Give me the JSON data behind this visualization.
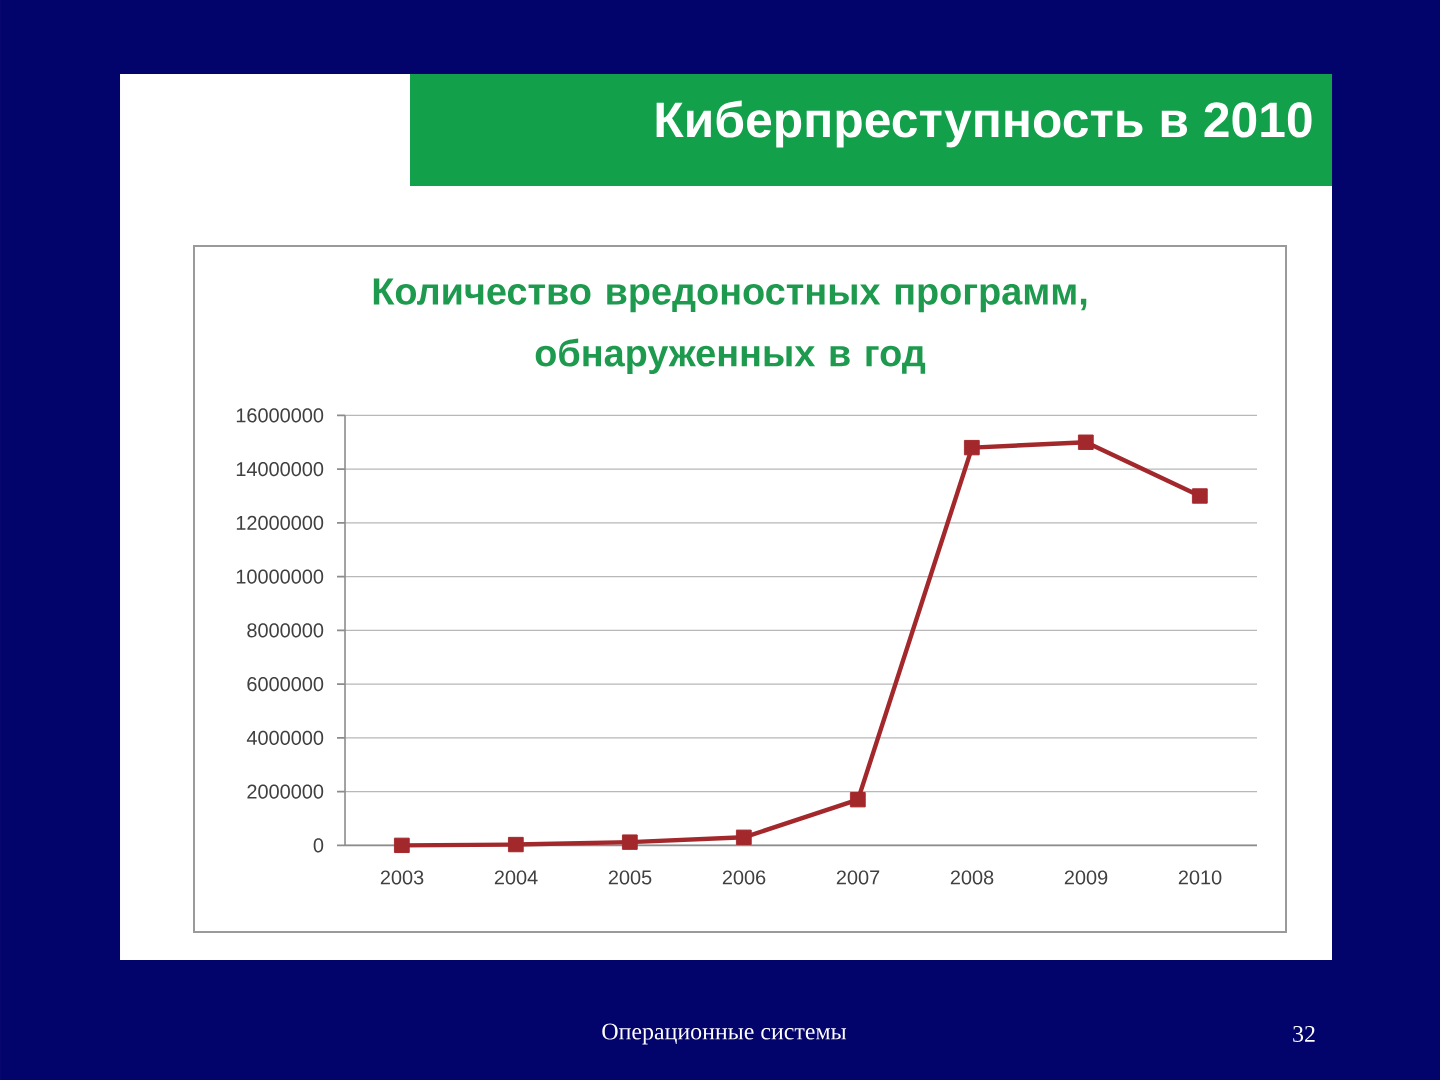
{
  "chart_data": {
    "type": "line",
    "title": "Количество вредоностных программ, обнаруженных в год",
    "categories": [
      "2003",
      "2004",
      "2005",
      "2006",
      "2007",
      "2008",
      "2009",
      "2010"
    ],
    "series": [
      {
        "color": "#a3282c",
        "values": [
          0,
          30000,
          120000,
          300000,
          1700000,
          14800000,
          15000000,
          13000000
        ]
      }
    ],
    "ylim": [
      0,
      16000000
    ],
    "yticks": [
      0,
      2000000,
      4000000,
      6000000,
      8000000,
      10000000,
      12000000,
      14000000,
      16000000
    ],
    "grid": "y",
    "marker": "square",
    "line_style": "solid",
    "annotations": [
      "Киберпреступность в 2010",
      "Операционные системы",
      "32"
    ]
  }
}
